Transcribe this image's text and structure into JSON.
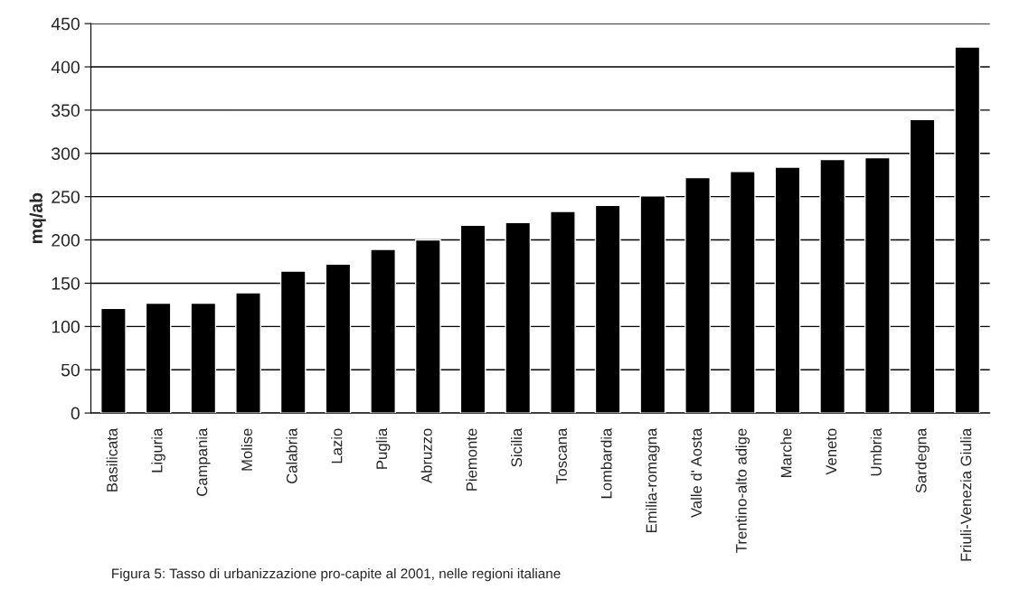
{
  "chart_data": {
    "type": "bar",
    "ylabel": "mq/ab",
    "categories": [
      "Basilicata",
      "Liguria",
      "Campania",
      "Molise",
      "Calabria",
      "Lazio",
      "Puglia",
      "Abruzzo",
      "Piemonte",
      "Sicilia",
      "Toscana",
      "Lombardia",
      "Emilia-romagna",
      "Valle d' Aosta",
      "Trentino-alto adige",
      "Marche",
      "Veneto",
      "Umbria",
      "Sardegna",
      "Friuli-Venezia Giulia"
    ],
    "values": [
      121,
      127,
      127,
      139,
      164,
      172,
      189,
      200,
      217,
      220,
      233,
      240,
      251,
      272,
      279,
      284,
      293,
      295,
      339,
      423
    ],
    "color": "#000000",
    "ylim": [
      0,
      450
    ],
    "yticks": [
      0,
      50,
      100,
      150,
      200,
      250,
      300,
      350,
      400,
      450
    ],
    "grid": "y",
    "annotations": [
      "Figura 5: Tasso di urbanizzazione pro-capite al 2001, nelle regioni italiane"
    ]
  }
}
